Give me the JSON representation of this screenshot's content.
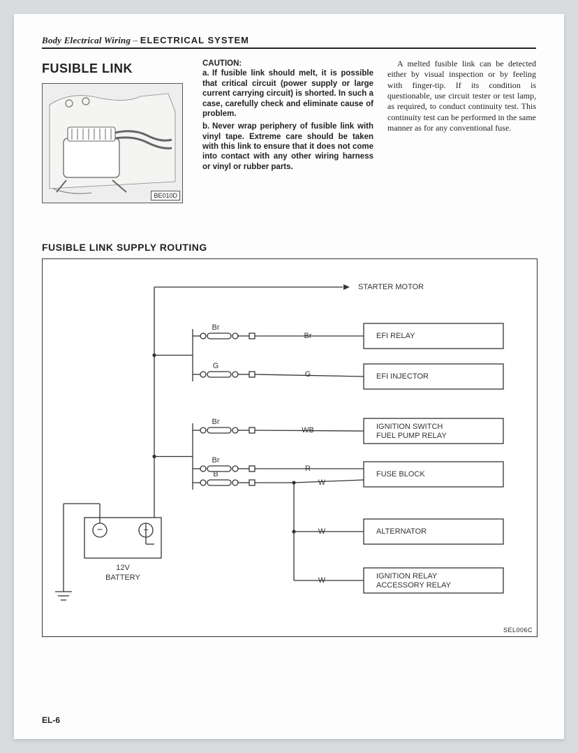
{
  "header": {
    "left_italic": "Body Electrical Wiring",
    "separator": " – ",
    "right_caps": "ELECTRICAL  SYSTEM"
  },
  "title": "FUSIBLE LINK",
  "photo_code": "BE010D",
  "caution": {
    "heading": "CAUTION:",
    "items": [
      "If fusible link should melt, it is possible that critical circuit (power supply or large current carrying circuit) is shorted. In such a case, carefully check and eliminate cause of problem.",
      "Never wrap periphery of fusible link with vinyl tape. Extreme care should be taken with this link to ensure that it does not come into contact with any other wiring harness or vinyl or rubber parts."
    ],
    "leads": [
      "a.",
      "b."
    ]
  },
  "body_text": "A melted fusible link can be detected either by visual inspection or by feeling with finger-tip. If its condition is questionable, use circuit tester or test lamp, as required, to conduct continuity test. This continuity test can be performed in the same manner as for any conventional fuse.",
  "routing_title": "FUSIBLE LINK SUPPLY ROUTING",
  "diagram": {
    "code": "SEL006C",
    "starter_label": "STARTER MOTOR",
    "battery": {
      "voltage": "12V",
      "label": "BATTERY"
    },
    "fuses": [
      {
        "top_label": "Br",
        "wire_label": "Br"
      },
      {
        "top_label": "G",
        "wire_label": "G"
      },
      {
        "top_label": "Br",
        "wire_label": "WB"
      },
      {
        "top_label": "Br",
        "wire_label": "R"
      },
      {
        "top_label": "B",
        "wire_label": "W"
      }
    ],
    "extra_wire_labels": [
      "W",
      "W"
    ],
    "boxes": [
      "EFI RELAY",
      "EFI INJECTOR",
      "IGNITION SWITCH\nFUEL PUMP RELAY",
      "FUSE BLOCK",
      "ALTERNATOR",
      "IGNITION RELAY\nACCESSORY RELAY"
    ],
    "colors": {
      "line": "#333333",
      "box_border": "#333333",
      "text": "#333333",
      "background": "#ffffff"
    },
    "line_width": 1.3,
    "box_line_width": 1.3,
    "font_size_label": 11,
    "font_size_box": 11
  },
  "page_number": "EL-6"
}
